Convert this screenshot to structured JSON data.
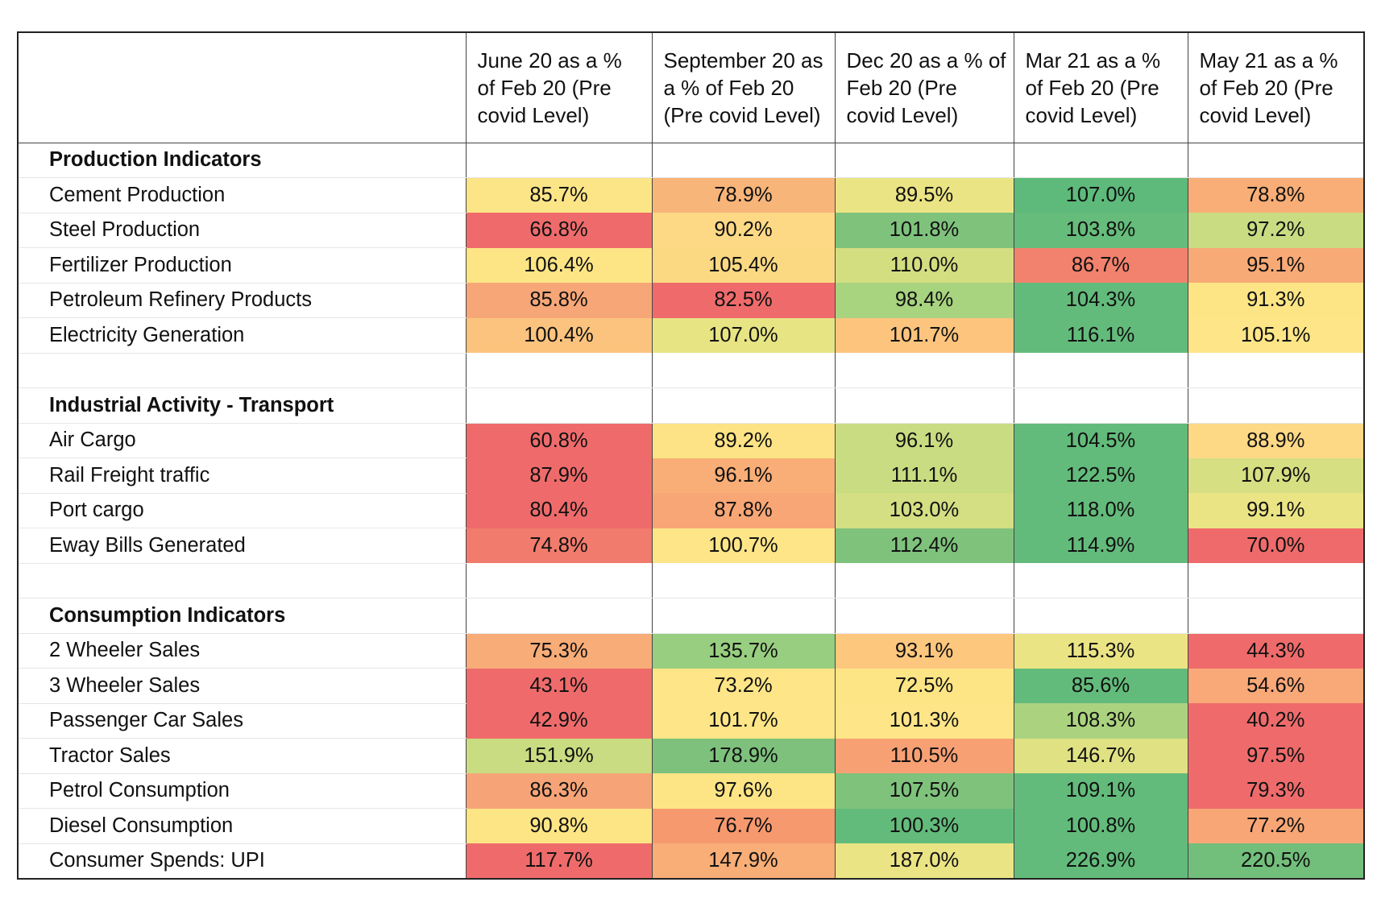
{
  "chart_data": {
    "type": "table",
    "columns": [
      "June 20 as a % of Feb 20 (Pre covid Level)",
      "September 20 as a % of Feb 20 (Pre covid Level)",
      "Dec 20 as a % of Feb 20 (Pre covid Level)",
      "Mar 21 as a % of Feb 20 (Pre covid Level)",
      "May 21 as a % of Feb 20 (Pre covid Level)"
    ],
    "rows": [
      {
        "kind": "section",
        "label": "Production Indicators"
      },
      {
        "kind": "data",
        "label": "Cement Production",
        "values": [
          "85.7%",
          "78.9%",
          "89.5%",
          "107.0%",
          "78.8%"
        ],
        "colors": [
          "#fce587",
          "#f8b579",
          "#ebe484",
          "#5dba7b",
          "#f8ae76"
        ]
      },
      {
        "kind": "data",
        "label": "Steel Production",
        "values": [
          "66.8%",
          "90.2%",
          "101.8%",
          "103.8%",
          "97.2%"
        ],
        "colors": [
          "#ef6b6b",
          "#fdd985",
          "#7fc27c",
          "#66bc7b",
          "#c9dc82"
        ]
      },
      {
        "kind": "data",
        "label": "Fertilizer Production",
        "values": [
          "106.4%",
          "105.4%",
          "110.0%",
          "86.7%",
          "95.1%"
        ],
        "colors": [
          "#fde585",
          "#fbd982",
          "#d3de81",
          "#f2826d",
          "#f8aa76"
        ]
      },
      {
        "kind": "data",
        "label": "Petroleum Refinery Products",
        "values": [
          "85.8%",
          "82.5%",
          "98.4%",
          "104.3%",
          "91.3%"
        ],
        "colors": [
          "#f7a777",
          "#ef6b6b",
          "#a8d37f",
          "#63bb7b",
          "#fde585"
        ]
      },
      {
        "kind": "data",
        "label": "Electricity Generation",
        "values": [
          "100.4%",
          "107.0%",
          "101.7%",
          "116.1%",
          "105.1%"
        ],
        "colors": [
          "#fbc37d",
          "#e7e484",
          "#fdc47d",
          "#63bb7b",
          "#fee587"
        ]
      },
      {
        "kind": "blank"
      },
      {
        "kind": "section",
        "label": "Industrial Activity - Transport"
      },
      {
        "kind": "data",
        "label": "Air Cargo",
        "values": [
          "60.8%",
          "89.2%",
          "96.1%",
          "104.5%",
          "88.9%"
        ],
        "colors": [
          "#ef6b6b",
          "#fde385",
          "#cadc81",
          "#63bb7b",
          "#fdd985"
        ]
      },
      {
        "kind": "data",
        "label": "Rail Freight traffic",
        "values": [
          "87.9%",
          "96.1%",
          "111.1%",
          "122.5%",
          "107.9%"
        ],
        "colors": [
          "#ef6b6b",
          "#f8ae76",
          "#cadc81",
          "#63bb7b",
          "#d6df82"
        ]
      },
      {
        "kind": "data",
        "label": "Port cargo",
        "values": [
          "80.4%",
          "87.8%",
          "103.0%",
          "118.0%",
          "99.1%"
        ],
        "colors": [
          "#ef6b6b",
          "#f8a676",
          "#d3df82",
          "#63bb7b",
          "#ebe484"
        ]
      },
      {
        "kind": "data",
        "label": "Eway Bills Generated",
        "values": [
          "74.8%",
          "100.7%",
          "112.4%",
          "114.9%",
          "70.0%"
        ],
        "colors": [
          "#f17b6d",
          "#fee587",
          "#7fc27c",
          "#63bb7b",
          "#ef6b6b"
        ]
      },
      {
        "kind": "blank"
      },
      {
        "kind": "section",
        "label": "Consumption Indicators"
      },
      {
        "kind": "data",
        "label": "2 Wheeler Sales",
        "values": [
          "75.3%",
          "135.7%",
          "93.1%",
          "115.3%",
          "44.3%"
        ],
        "colors": [
          "#f8ac77",
          "#98ce7f",
          "#fdc77e",
          "#ebe484",
          "#ef6b6b"
        ]
      },
      {
        "kind": "data",
        "label": "3 Wheeler Sales",
        "values": [
          "43.1%",
          "73.2%",
          "72.5%",
          "85.6%",
          "54.6%"
        ],
        "colors": [
          "#ef6b6b",
          "#fee587",
          "#fde585",
          "#63bb7b",
          "#f9a878"
        ]
      },
      {
        "kind": "data",
        "label": "Passenger Car Sales",
        "values": [
          "42.9%",
          "101.7%",
          "101.3%",
          "108.3%",
          "40.2%"
        ],
        "colors": [
          "#ef6b6b",
          "#fee587",
          "#fee587",
          "#abd37f",
          "#ef6b6b"
        ]
      },
      {
        "kind": "data",
        "label": "Tractor Sales",
        "values": [
          "151.9%",
          "178.9%",
          "110.5%",
          "146.7%",
          "97.5%"
        ],
        "colors": [
          "#cadc81",
          "#7dc17c",
          "#f7a074",
          "#e0e183",
          "#ef6b6b"
        ]
      },
      {
        "kind": "data",
        "label": "Petrol Consumption",
        "values": [
          "86.3%",
          "97.6%",
          "107.5%",
          "109.1%",
          "79.3%"
        ],
        "colors": [
          "#f6a477",
          "#fde585",
          "#7fc27c",
          "#63bb7b",
          "#ef6b6b"
        ]
      },
      {
        "kind": "data",
        "label": "Diesel Consumption",
        "values": [
          "90.8%",
          "76.7%",
          "100.3%",
          "100.8%",
          "77.2%"
        ],
        "colors": [
          "#fde585",
          "#f6996f",
          "#63bb7b",
          "#63bb7b",
          "#f8a676"
        ]
      },
      {
        "kind": "data",
        "label": "Consumer Spends: UPI",
        "values": [
          "117.7%",
          "147.9%",
          "187.0%",
          "226.9%",
          "220.5%"
        ],
        "colors": [
          "#ef6b6b",
          "#f8ae76",
          "#eae484",
          "#63bb7b",
          "#72be7b"
        ]
      }
    ]
  }
}
